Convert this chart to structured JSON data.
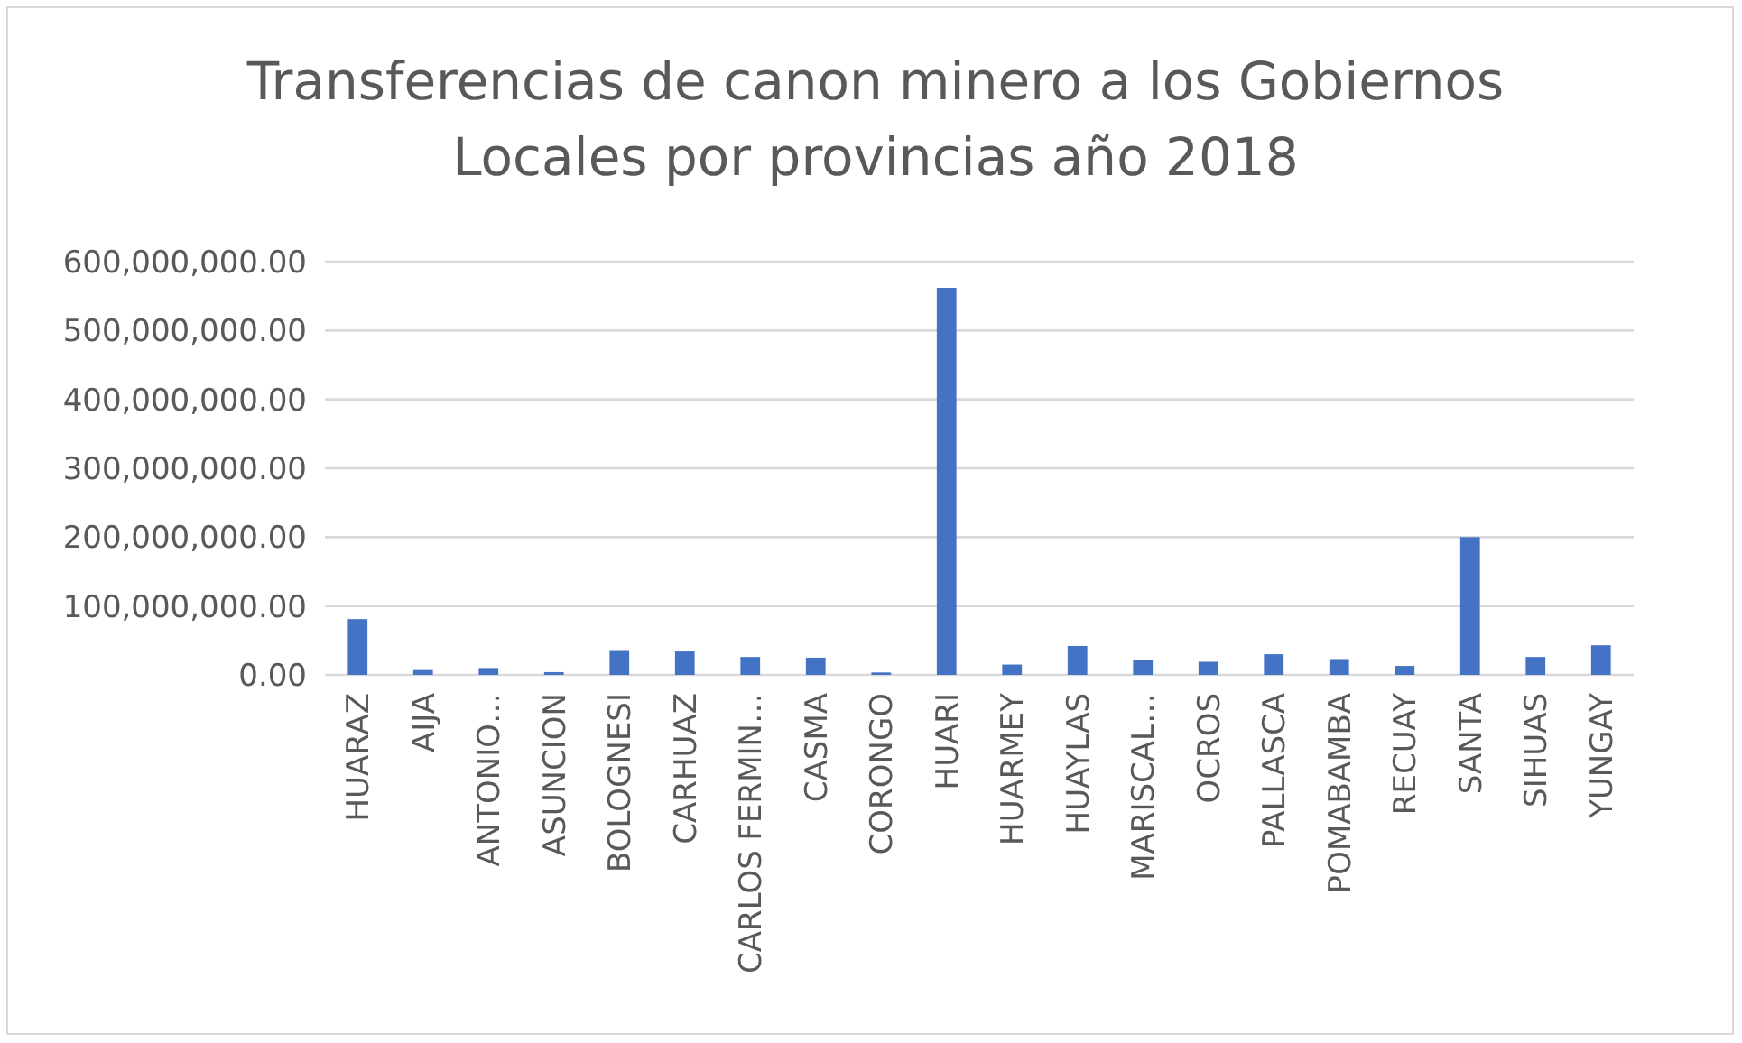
{
  "chart_data": {
    "type": "bar",
    "title": "Transferencias de canon minero a los Gobiernos Locales por provincias año 2018",
    "categories": [
      "HUARAZ",
      "AIJA",
      "ANTONIO…",
      "ASUNCION",
      "BOLOGNESI",
      "CARHUAZ",
      "CARLOS FERMIN…",
      "CASMA",
      "CORONGO",
      "HUARI",
      "HUARMEY",
      "HUAYLAS",
      "MARISCAL…",
      "OCROS",
      "PALLASCA",
      "POMABAMBA",
      "RECUAY",
      "SANTA",
      "SIHUAS",
      "YUNGAY"
    ],
    "values": [
      81000000,
      7000000,
      10000000,
      4000000,
      36000000,
      34000000,
      26000000,
      25000000,
      3500000,
      562000000,
      15000000,
      42000000,
      22000000,
      19000000,
      30000000,
      23000000,
      13000000,
      200000000,
      26000000,
      43000000
    ],
    "color": "#4472c4",
    "ylim": [
      0,
      600000000
    ],
    "yticks": [
      {
        "value": 0,
        "label": "0.00"
      },
      {
        "value": 100000000,
        "label": "100,000,000.00"
      },
      {
        "value": 200000000,
        "label": "200,000,000.00"
      },
      {
        "value": 300000000,
        "label": "300,000,000.00"
      },
      {
        "value": 400000000,
        "label": "400,000,000.00"
      },
      {
        "value": 500000000,
        "label": "500,000,000.00"
      },
      {
        "value": 600000000,
        "label": "600,000,000.00"
      }
    ],
    "grid": "y"
  }
}
